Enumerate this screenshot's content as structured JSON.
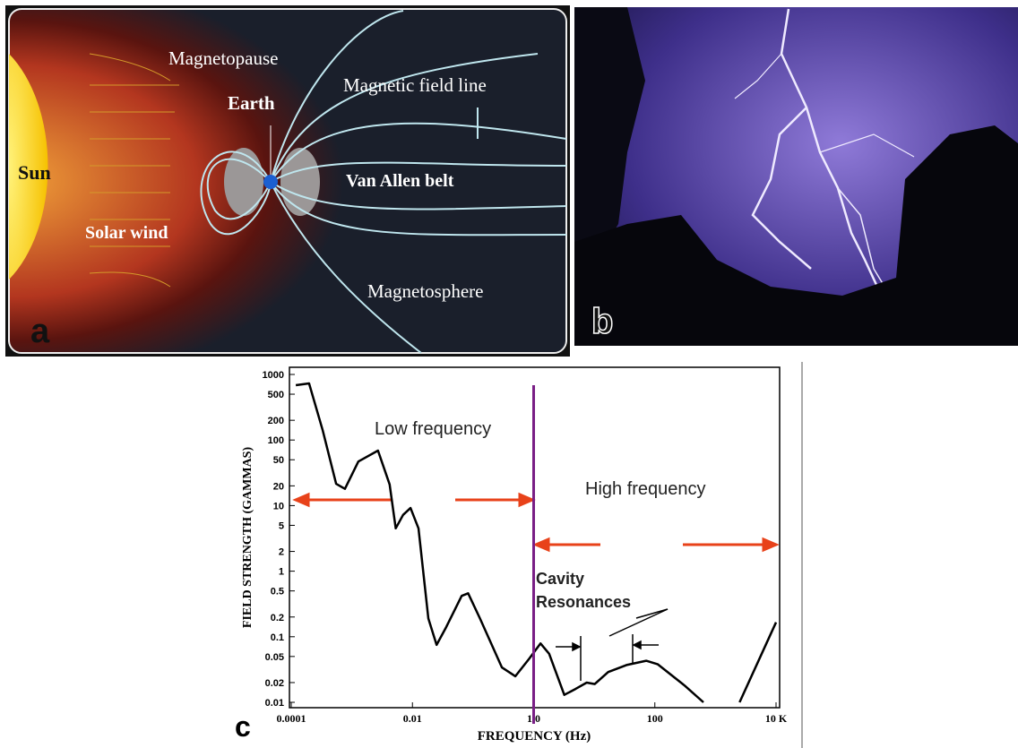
{
  "panel_a": {
    "label": "a",
    "magnetopause": "Magnetopause",
    "field_line": "Magnetic field line",
    "earth": "Earth",
    "sun": "Sun",
    "van_allen": "Van Allen belt",
    "solar_wind": "Solar wind",
    "magnetosphere": "Magnetosphere"
  },
  "panel_b": {
    "label": "b"
  },
  "chart_data": {
    "type": "line",
    "panel_label": "c",
    "xlabel": "FREQUENCY (Hz)",
    "ylabel": "FIELD STRENGTH (GAMMAS)",
    "log_x": true,
    "log_y": true,
    "color": "#000000",
    "xlim": [
      0.0001,
      10000
    ],
    "ylim": [
      0.01,
      1000
    ],
    "xticks": [
      0.0001,
      0.01,
      {
        "value": 1,
        "label": "1.0"
      },
      100,
      {
        "value": 10000,
        "label": "10 K"
      }
    ],
    "yticks": [
      1000,
      500,
      200,
      100,
      50,
      20,
      10,
      5,
      2,
      1,
      0.5,
      0.2,
      0.1,
      0.05,
      0.02,
      0.01
    ],
    "x": [
      0.000119,
      0.000197,
      0.00033,
      0.00055,
      0.00077,
      0.00128,
      0.0027,
      0.0042,
      0.0053,
      0.007,
      0.0093,
      0.0126,
      0.0183,
      0.025,
      0.036,
      0.065,
      0.083,
      0.13,
      0.3,
      0.5,
      0.84,
      1.3,
      1.8,
      3.2,
      4.9,
      7.5,
      10.2,
      17,
      34,
      72,
      112,
      310,
      635,
      1000,
      2500,
      10000
    ],
    "values": [
      685,
      730,
      141,
      21.5,
      18,
      47,
      69,
      21,
      4.5,
      7.2,
      9.2,
      4.5,
      0.19,
      0.075,
      0.14,
      0.42,
      0.46,
      0.19,
      0.034,
      0.025,
      0.046,
      0.079,
      0.055,
      0.013,
      0.016,
      0.02,
      0.019,
      0.029,
      0.037,
      0.043,
      0.038,
      0.018,
      0.01,
      null,
      0.01,
      0.166
    ],
    "divider_x": 1,
    "divider_color": "#7a1f86",
    "annotations": [
      "Low frequency",
      "High frequency",
      "Cavity",
      "Resonances"
    ]
  }
}
